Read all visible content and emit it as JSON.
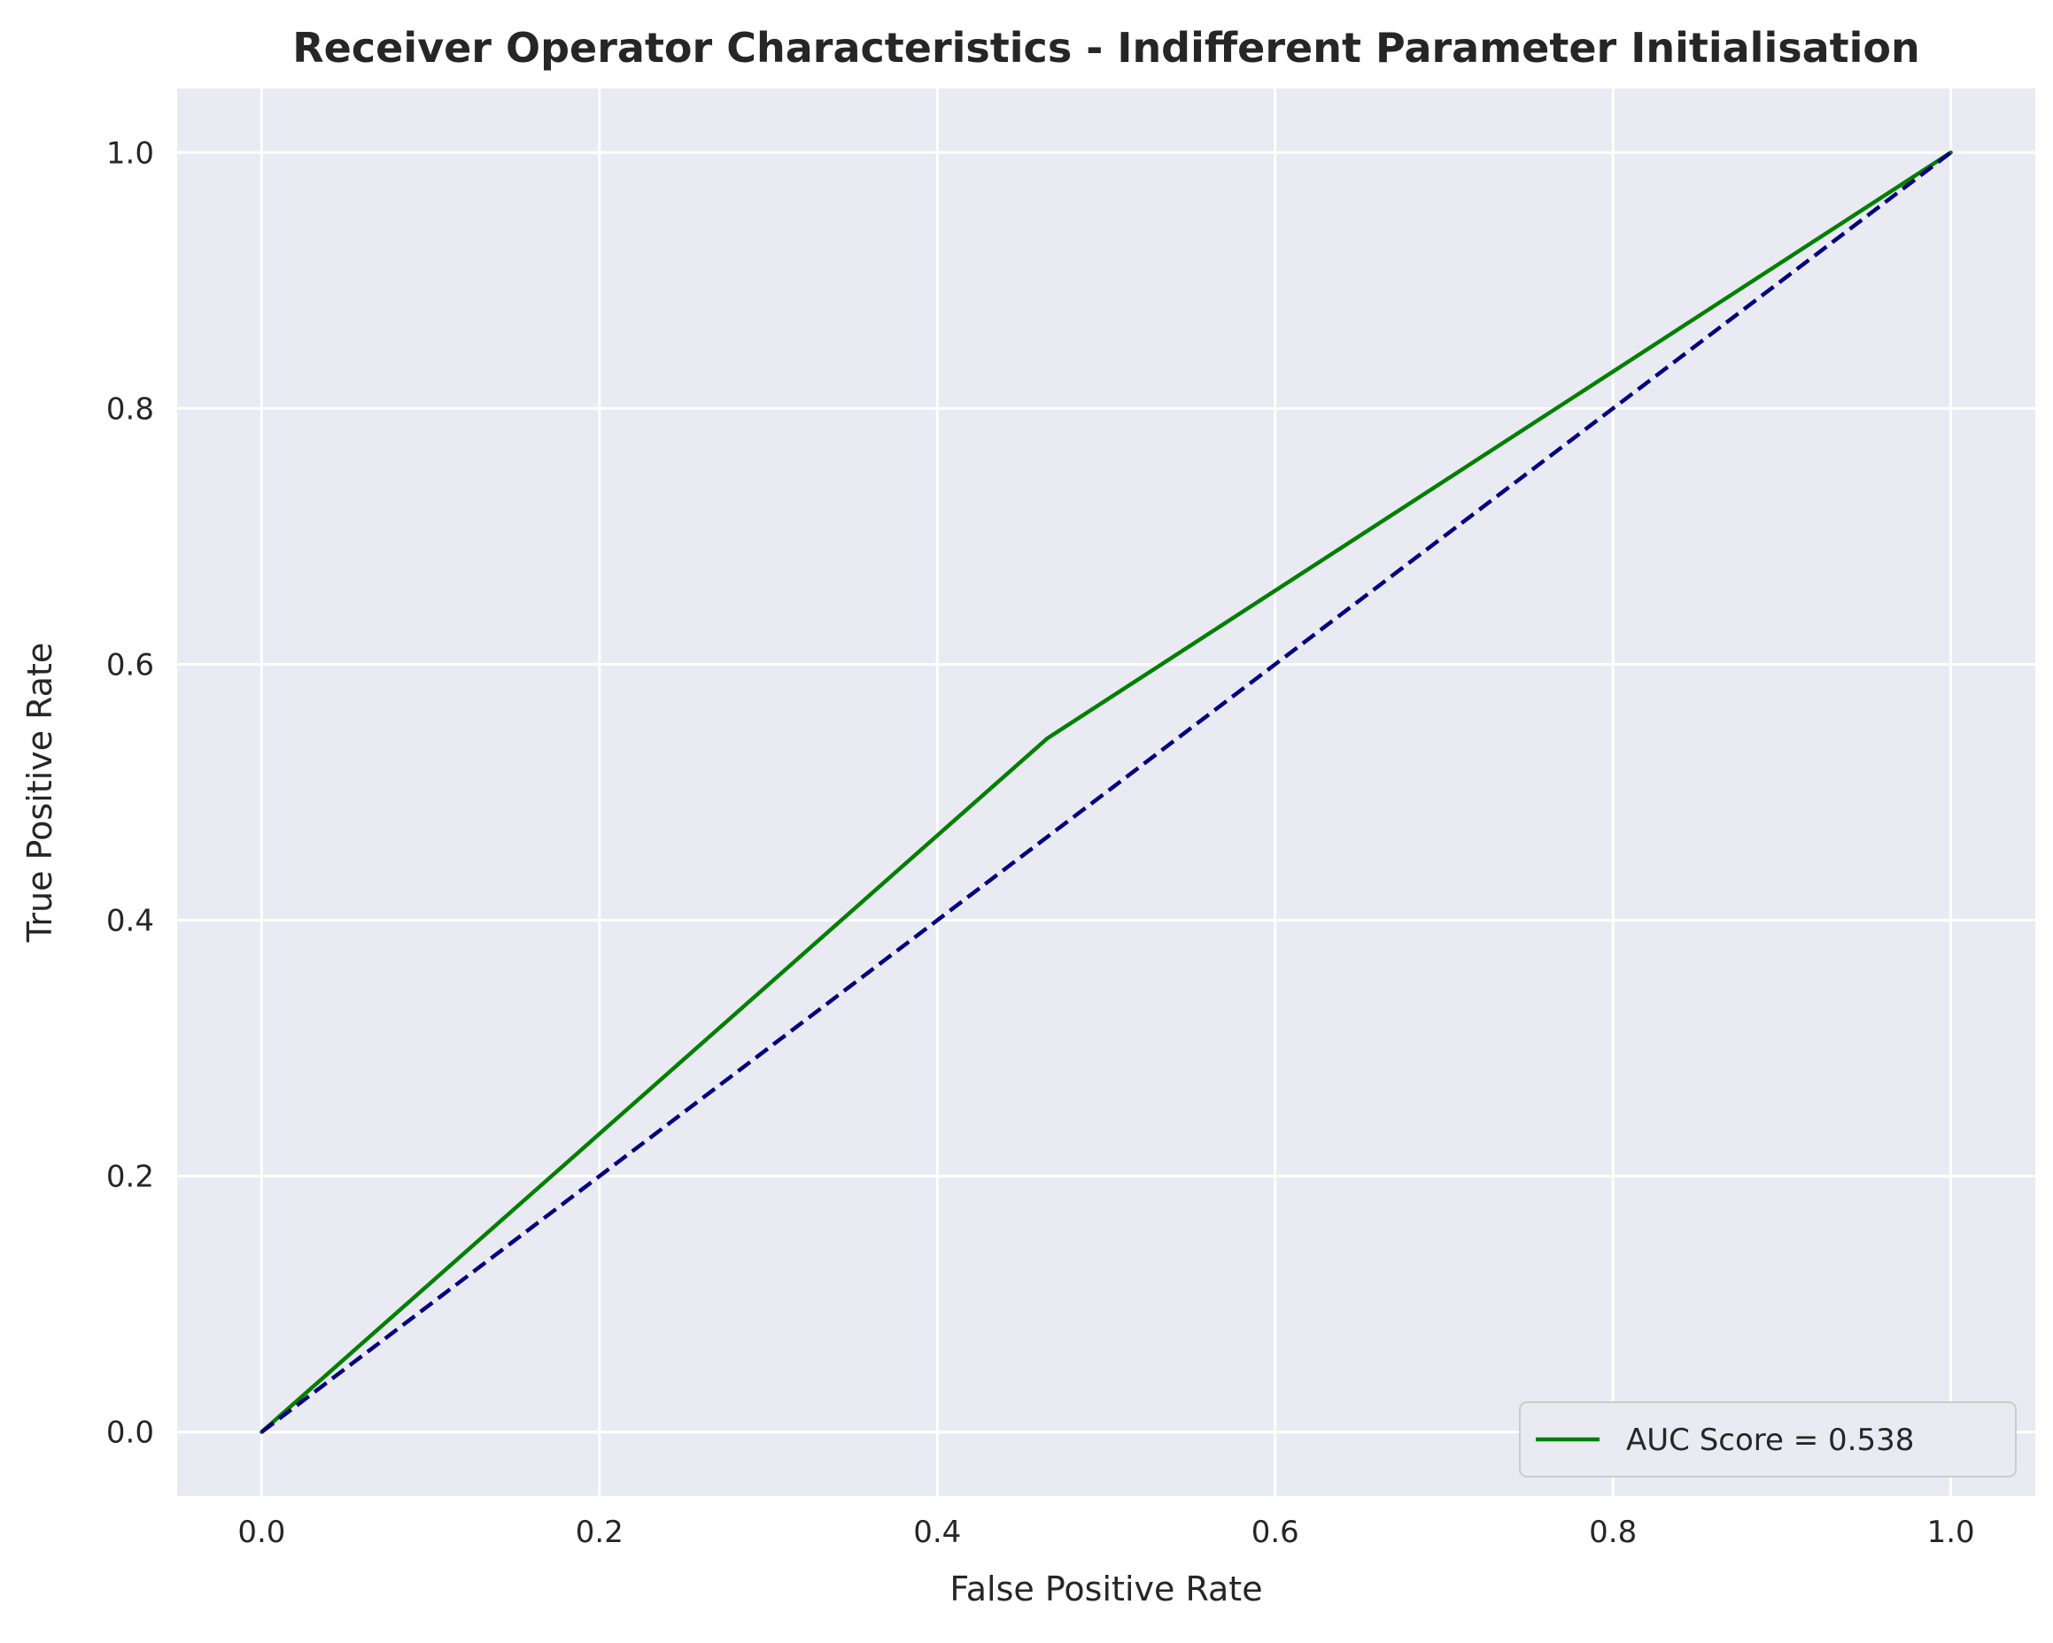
{
  "chart_data": {
    "type": "line",
    "title": "Receiver Operator Characteristics - Indifferent Parameter Initialisation",
    "xlabel": "False Positive Rate",
    "ylabel": "True Positive Rate",
    "xlim": [
      -0.05,
      1.05
    ],
    "ylim": [
      -0.05,
      1.05
    ],
    "xticks": [
      "0.0",
      "0.2",
      "0.4",
      "0.6",
      "0.8",
      "1.0"
    ],
    "yticks": [
      "0.0",
      "0.2",
      "0.4",
      "0.6",
      "0.8",
      "1.0"
    ],
    "grid": true,
    "legend_position": "lower-right",
    "series": [
      {
        "name": "AUC Score = 0.538",
        "color": "#008000",
        "style": "solid",
        "x": [
          0.0,
          0.465,
          1.0
        ],
        "y": [
          0.0,
          0.542,
          1.0
        ]
      },
      {
        "color": "#000080",
        "style": "dashed",
        "x": [
          0.0,
          1.0
        ],
        "y": [
          0.0,
          1.0
        ]
      }
    ]
  },
  "colors": {
    "plot_background": "#EAEAF2",
    "grid": "#FFFFFF",
    "text": "#262626"
  }
}
